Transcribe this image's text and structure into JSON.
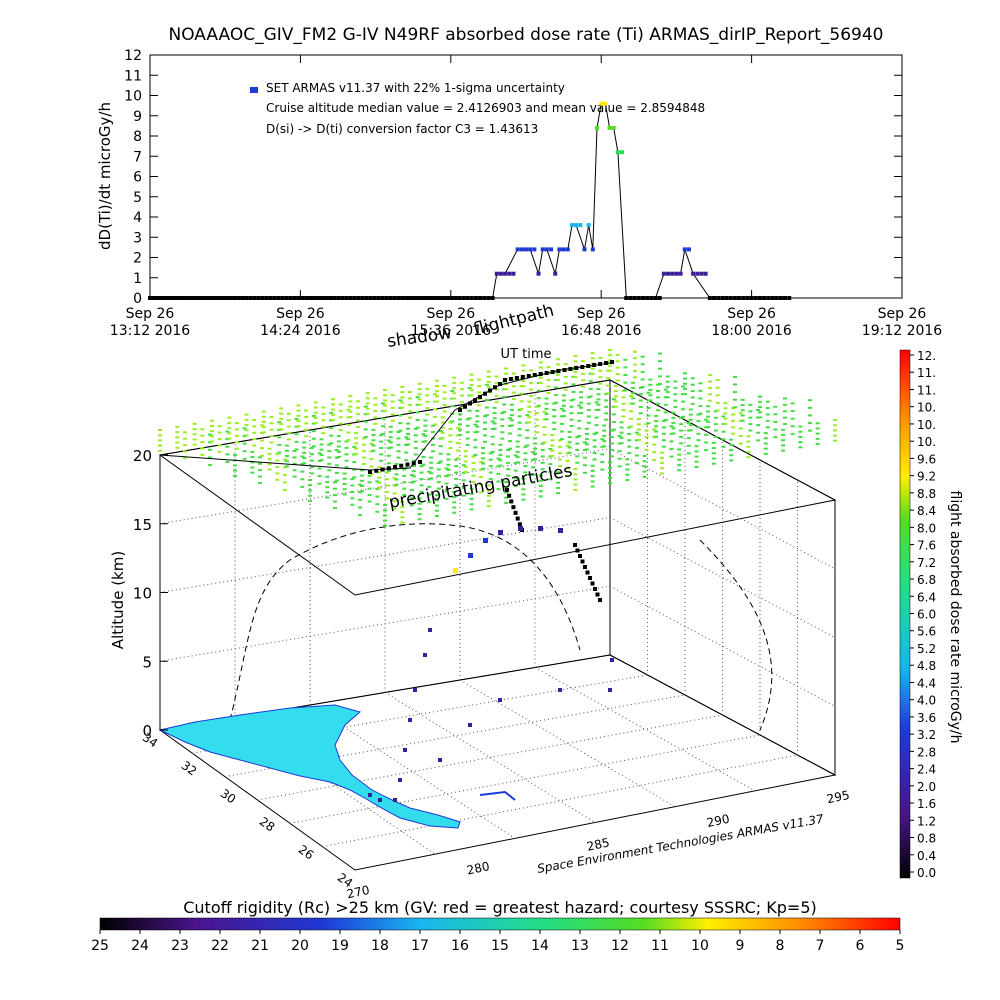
{
  "title": "NOAAAOC_GIV_FM2 G-IV    N49RF  absorbed dose rate (Ti) ARMAS_dirIP_Report_56940",
  "chart_data": [
    {
      "type": "line",
      "ylabel": "dD(Ti)/dt microGy/h",
      "xlabel": "UT time",
      "ylim": [
        0,
        12
      ],
      "y_ticks": [
        "0",
        "1",
        "2",
        "3",
        "4",
        "5",
        "6",
        "7",
        "8",
        "9",
        "10",
        "11",
        "12"
      ],
      "x_ticks": [
        {
          "line1": "Sep 26",
          "line2": "13:12 2016"
        },
        {
          "line1": "Sep 26",
          "line2": "14:24 2016"
        },
        {
          "line1": "Sep 26",
          "line2": "15:36 2016"
        },
        {
          "line1": "Sep 26",
          "line2": "16:48 2016"
        },
        {
          "line1": "Sep 26",
          "line2": "18:00 2016"
        },
        {
          "line1": "Sep 26",
          "line2": "19:12 2016"
        }
      ],
      "annotations": [
        "SET ARMAS v11.37 with 22% 1-sigma uncertainty",
        "Cruise altitude median value = 2.4126903 and mean value = 2.8594848",
        "D(si) -> D(ti) conversion factor C3 = 1.43613"
      ],
      "series": [
        {
          "x": [
            "13:12",
            "13:58",
            "14:50",
            "15:40",
            "15:56",
            "15:58",
            "16:02",
            "16:08",
            "16:10",
            "16:14",
            "16:18",
            "16:20",
            "16:22",
            "16:26",
            "16:28",
            "16:30",
            "16:32",
            "16:34",
            "16:36",
            "16:40",
            "16:42",
            "16:44",
            "16:46",
            "16:48",
            "16:50",
            "16:52",
            "16:54",
            "16:56",
            "17:00",
            "17:10",
            "17:14",
            "17:18",
            "17:22",
            "17:26",
            "17:28",
            "17:32",
            "17:40",
            "18:00",
            "18:20"
          ],
          "y": [
            0,
            0,
            0,
            0,
            0,
            1.2,
            1.2,
            2.4,
            2.4,
            2.4,
            1.2,
            2.4,
            2.4,
            1.2,
            2.4,
            2.4,
            2.4,
            3.6,
            3.6,
            2.4,
            3.6,
            2.4,
            8.4,
            9.6,
            9.6,
            8.4,
            8.4,
            7.2,
            0,
            0,
            0,
            1.2,
            1.2,
            1.2,
            2.4,
            1.2,
            0,
            0,
            0
          ]
        }
      ]
    },
    {
      "type": "scatter",
      "title": "",
      "labels": [
        "shadow",
        "flightpath",
        "precipitating particles"
      ],
      "zlabel": "Altitude (km)",
      "z_ticks": [
        "0",
        "5",
        "10",
        "15",
        "20"
      ],
      "lat_ticks": [
        "24",
        "26",
        "28",
        "30",
        "32",
        "34"
      ],
      "lon_ticks": [
        "270",
        "280",
        "285",
        "290",
        "295"
      ],
      "credit": "Space Environment Technologies ARMAS v11.37",
      "colorbar_right": {
        "label": "flight absorbed dose rate microGy/h",
        "ticks": [
          "12.",
          "11.",
          "11.",
          "10.",
          "10.",
          "10.",
          "9.6",
          "9.2",
          "8.8",
          "8.4",
          "8.0",
          "7.6",
          "7.2",
          "6.8",
          "6.4",
          "6.0",
          "5.6",
          "5.2",
          "4.8",
          "4.4",
          "4.0",
          "3.6",
          "3.2",
          "2.8",
          "2.4",
          "2.0",
          "1.6",
          "1.2",
          "0.8",
          "0.4",
          "0.0"
        ]
      },
      "colorbar_bottom": {
        "label": "Cutoff rigidity (Rc) >25 km (GV: red = greatest hazard; courtesy SSSRC; Kp=5)",
        "ticks": [
          "25",
          "24",
          "23",
          "22",
          "21",
          "20",
          "19",
          "18",
          "17",
          "16",
          "15",
          "14",
          "13",
          "12",
          "11",
          "10",
          "9",
          "8",
          "7",
          "6",
          "5"
        ]
      },
      "colors": {
        "land": "#33ddee",
        "particles": "#44dd44",
        "particles_high": "#99ee22",
        "flight_low": "#000000",
        "flight_mid": "#3b1f99",
        "flight_high": "#1e3ad6"
      }
    }
  ]
}
